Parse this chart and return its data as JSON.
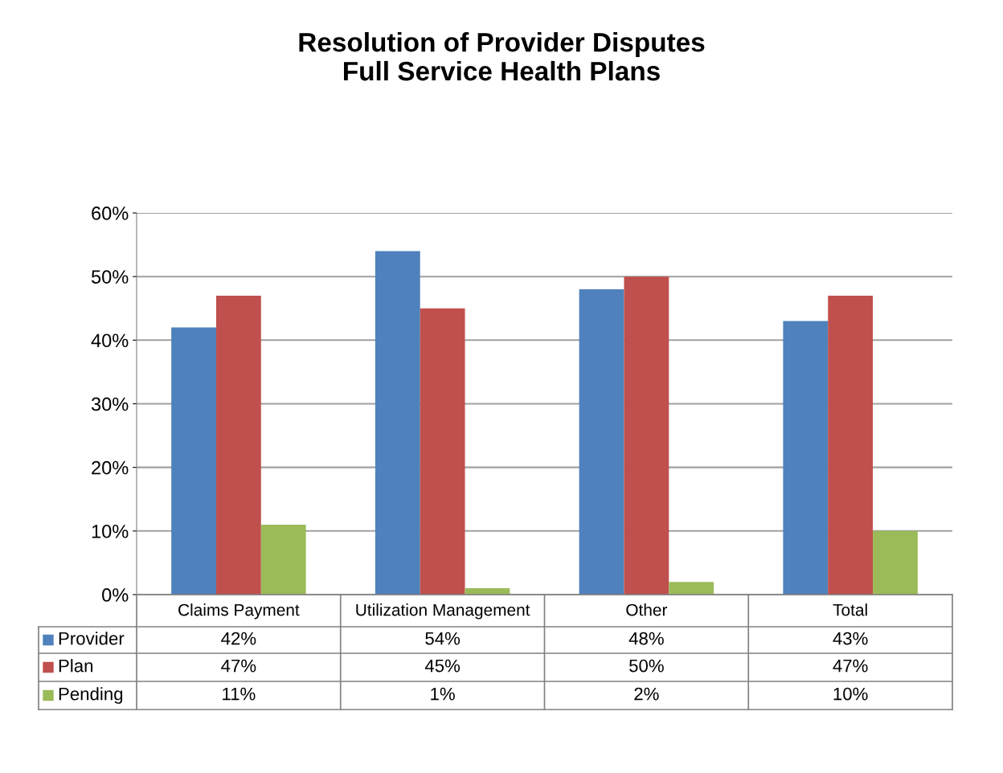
{
  "chart_data": {
    "type": "bar",
    "title": "Resolution of Provider Disputes\nFull Service Health Plans",
    "categories": [
      "Claims Payment",
      "Utilization Management",
      "Other",
      "Total"
    ],
    "series": [
      {
        "name": "Provider",
        "color": "#4f81bd",
        "values": [
          42,
          54,
          48,
          43
        ],
        "value_labels": [
          "42%",
          "54%",
          "48%",
          "43%"
        ]
      },
      {
        "name": "Plan",
        "color": "#c0504d",
        "values": [
          47,
          45,
          50,
          47
        ],
        "value_labels": [
          "47%",
          "45%",
          "50%",
          "47%"
        ]
      },
      {
        "name": "Pending",
        "color": "#9bbb59",
        "values": [
          11,
          1,
          2,
          10
        ],
        "value_labels": [
          "11%",
          "1%",
          "2%",
          "10%"
        ]
      }
    ],
    "ylim": [
      0,
      60
    ],
    "yticks": [
      {
        "value": 0,
        "label": "0%"
      },
      {
        "value": 10,
        "label": "10%"
      },
      {
        "value": 20,
        "label": "20%"
      },
      {
        "value": 30,
        "label": "30%"
      },
      {
        "value": 40,
        "label": "40%"
      },
      {
        "value": 50,
        "label": "50%"
      },
      {
        "value": 60,
        "label": "60%"
      }
    ],
    "grid": "y",
    "legend": "bottom"
  }
}
